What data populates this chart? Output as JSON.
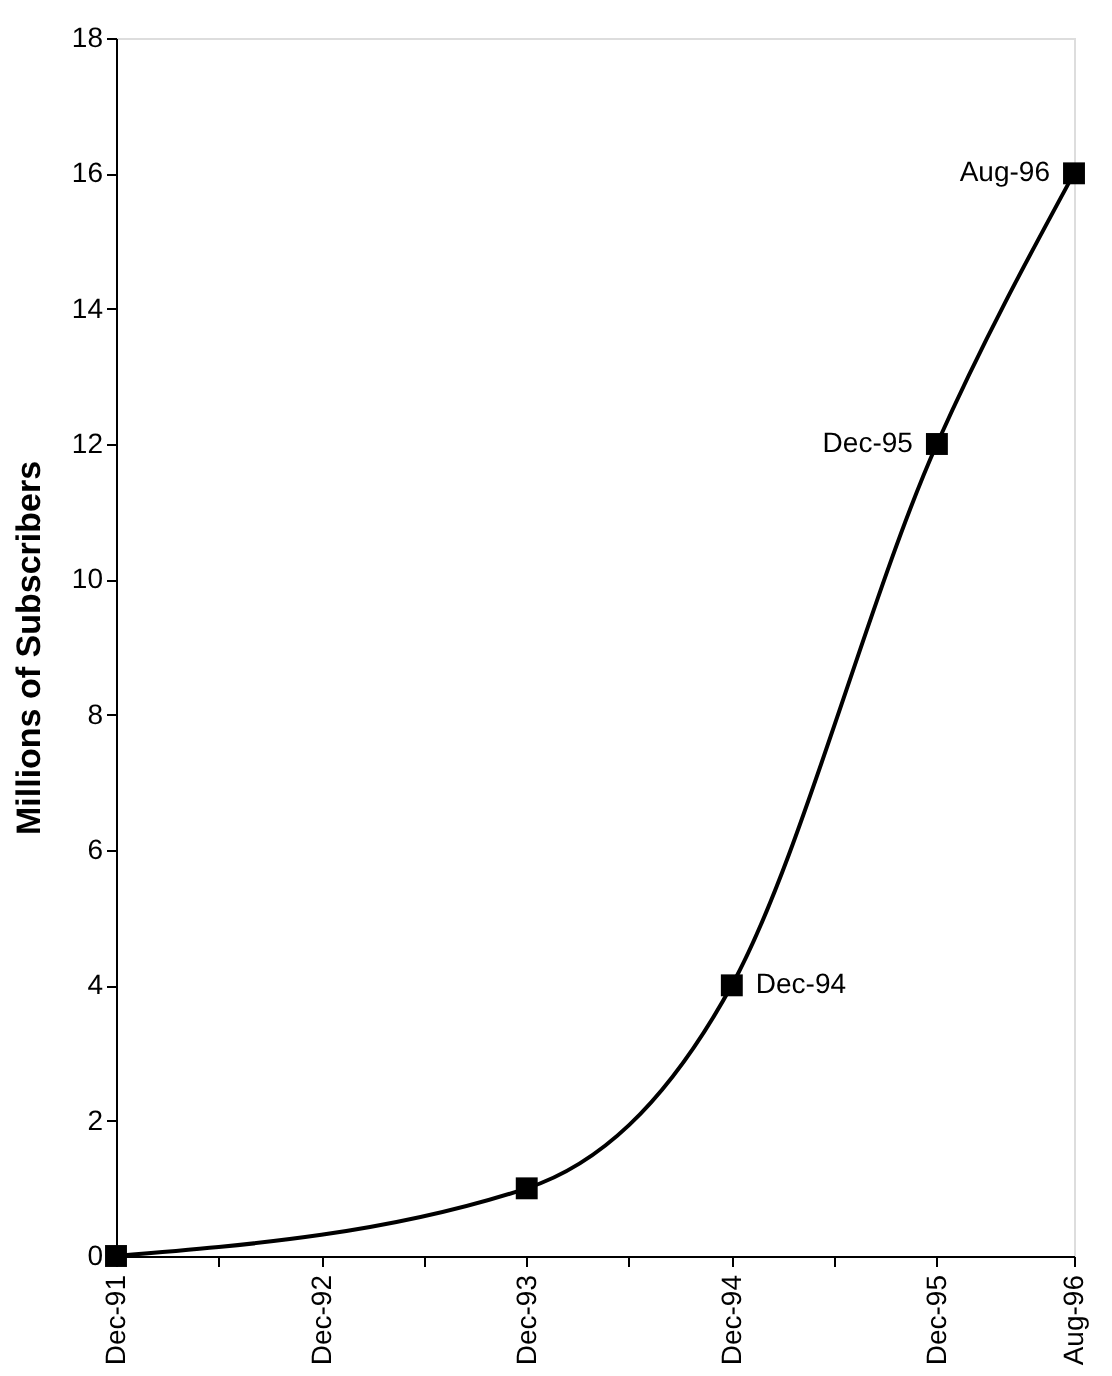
{
  "chart_data": {
    "type": "line",
    "ylabel": "Millions of Subscribers",
    "x": [
      "1991-12",
      "1993-12",
      "1994-12",
      "1995-12",
      "1996-08"
    ],
    "series": [
      {
        "color": "#000000",
        "values": [
          0,
          1,
          4,
          12,
          16
        ]
      }
    ],
    "xlim": [
      "1991-12",
      "1996-08"
    ],
    "xticks": [
      {
        "value": "1991-12",
        "label": "Dec-91"
      },
      {
        "value": "1992-06",
        "label": null
      },
      {
        "value": "1992-12",
        "label": "Dec-92"
      },
      {
        "value": "1993-06",
        "label": null
      },
      {
        "value": "1993-12",
        "label": "Dec-93"
      },
      {
        "value": "1994-06",
        "label": null
      },
      {
        "value": "1994-12",
        "label": "Dec-94"
      },
      {
        "value": "1995-06",
        "label": null
      },
      {
        "value": "1995-12",
        "label": "Dec-95"
      },
      {
        "value": "1996-08",
        "label": "Aug-96"
      }
    ],
    "ylim": [
      0,
      18
    ],
    "yticks": [
      0,
      2,
      4,
      6,
      8,
      10,
      12,
      14,
      16,
      18
    ],
    "annotations": [
      {
        "text": "Dec-94",
        "x": "1994-12",
        "y": 4
      },
      {
        "text": "Dec-95",
        "x": "1995-12",
        "y": 12
      },
      {
        "text": "Aug-96",
        "x": "1996-08",
        "y": 16
      }
    ],
    "marker": "square",
    "line_style": "solid"
  }
}
